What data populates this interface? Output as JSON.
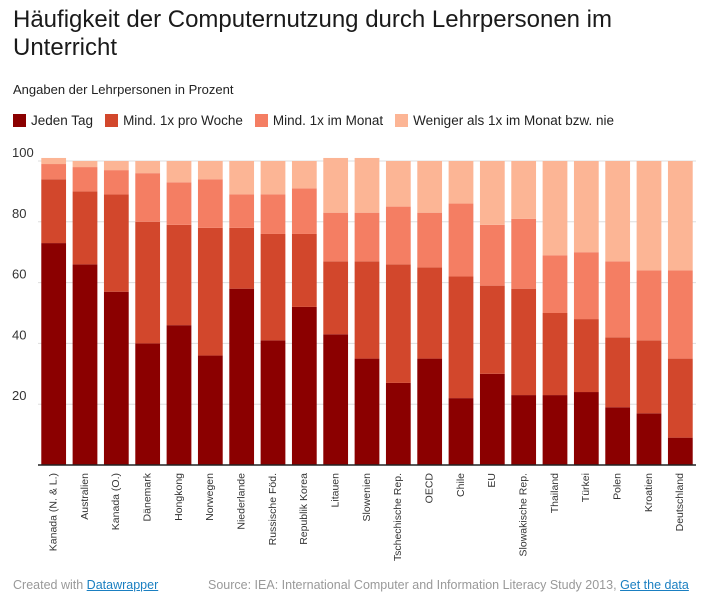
{
  "header": {
    "title": "Häufigkeit der Computernutzung durch Lehrpersonen im Unterricht",
    "subtitle": "Angaben der Lehrpersonen in Prozent"
  },
  "footer": {
    "created_text": "Created with",
    "created_link": "Datawrapper",
    "source_text": "Source: IEA: International Computer and Information Literacy Study 2013,",
    "data_link": "Get the data"
  },
  "colors": {
    "jeden_tag": "#8b0000",
    "woche": "#d2472c",
    "monat": "#f47e63",
    "weniger": "#fcb595"
  },
  "chart_data": {
    "type": "bar",
    "stacked": true,
    "categories": [
      "Kanada (N. & L.)",
      "Australien",
      "Kanada (O.)",
      "Dänemark",
      "Hongkong",
      "Norwegen",
      "Niederlande",
      "Russische Föd.",
      "Republik Korea",
      "Litauen",
      "Slowenien",
      "Tschechische Rep.",
      "OECD",
      "Chile",
      "EU",
      "Slowakische Rep.",
      "Thailand",
      "Türkei",
      "Polen",
      "Kroatien",
      "Deutschland"
    ],
    "series": [
      {
        "name": "Jeden Tag",
        "color": "#8b0000",
        "values": [
          73,
          66,
          57,
          40,
          46,
          36,
          58,
          41,
          52,
          43,
          35,
          27,
          35,
          22,
          30,
          23,
          23,
          24,
          19,
          17,
          9
        ]
      },
      {
        "name": "Mind. 1x pro Woche",
        "color": "#d2472c",
        "values": [
          21,
          24,
          32,
          40,
          33,
          42,
          20,
          35,
          24,
          24,
          32,
          39,
          30,
          40,
          29,
          35,
          27,
          24,
          23,
          24,
          26
        ]
      },
      {
        "name": "Mind. 1x im Monat",
        "color": "#f47e63",
        "values": [
          5,
          8,
          8,
          16,
          14,
          16,
          11,
          13,
          15,
          16,
          16,
          19,
          18,
          24,
          20,
          23,
          19,
          22,
          25,
          23,
          29
        ]
      },
      {
        "name": "Weniger als 1x im Monat bzw. nie",
        "color": "#fcb595",
        "values": [
          2,
          2,
          3,
          4,
          7,
          6,
          11,
          11,
          9,
          18,
          18,
          15,
          17,
          14,
          21,
          19,
          31,
          30,
          33,
          36,
          36
        ]
      }
    ],
    "yticks": [
      20,
      40,
      60,
      80,
      100
    ],
    "ylim": [
      0,
      100
    ],
    "grid": true,
    "legend": "top-left"
  }
}
